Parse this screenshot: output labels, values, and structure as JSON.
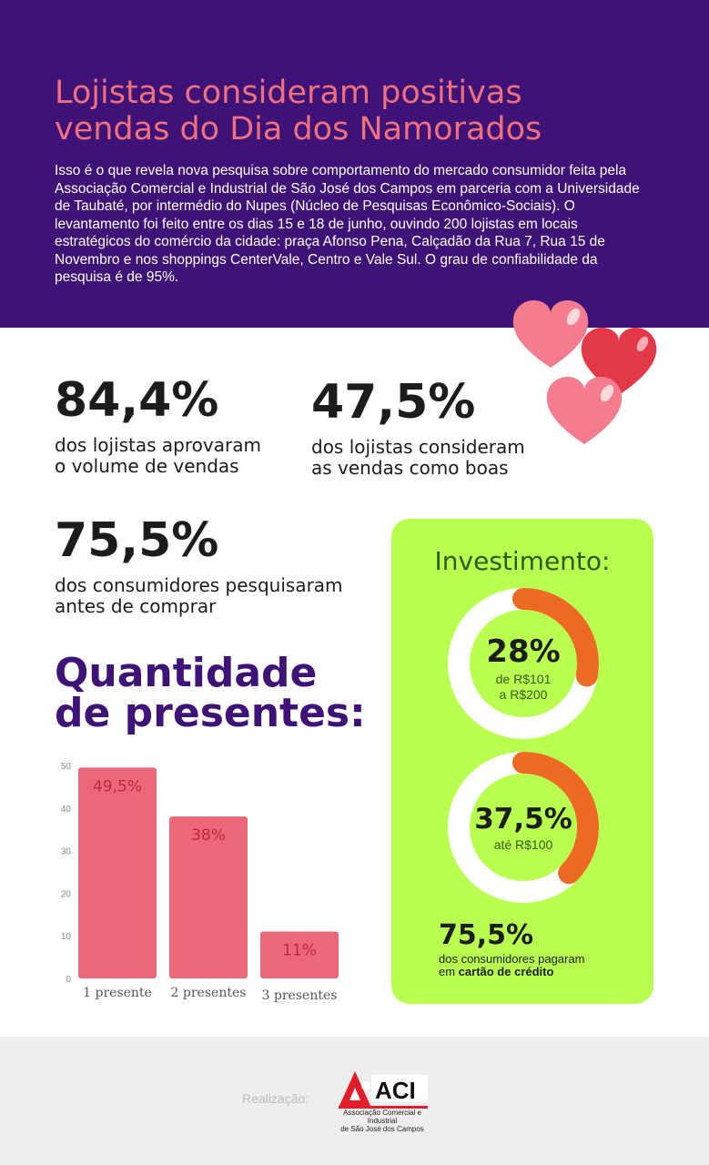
{
  "header": {
    "title": "Lojistas consideram positivas vendas do Dia dos Namorados",
    "text": "Isso é o que revela nova pesquisa sobre comportamento do mercado consumidor feita pela Associação Comercial e Industrial de São José dos Campos em parceria com a Universidade de Taubaté, por intermédio do Nupes (Núcleo de Pesquisas Econômico-Sociais). O levantamento foi feito entre os dias 15 e 18 de junho, ouvindo 200 lojistas em locais estratégicos do comércio da cidade: praça Afonso Pena, Calçadão da Rua 7, Rua 15 de Novembro e nos shoppings CenterVale, Centro e Vale Sul. O grau de confiabilidade da pesquisa é de 95%."
  },
  "stats": [
    {
      "number": "84,4%",
      "line1": "dos lojistas aprovaram",
      "line2": "o volume de vendas"
    },
    {
      "number": "47,5%",
      "line1": "dos lojistas consideram",
      "line2": "as vendas como boas"
    },
    {
      "number": "75,5%",
      "line1": "dos consumidores pesquisaram",
      "line2": "antes de comprar"
    }
  ],
  "gifts": {
    "title_line1": "Quantidade",
    "title_line2": "de presentes:"
  },
  "chart_data": {
    "type": "bar",
    "categories": [
      "1 presente",
      "2 presentes",
      "3 presentes"
    ],
    "values": [
      49.5,
      38,
      11
    ],
    "value_labels": [
      "49,5%",
      "38%",
      "11%"
    ],
    "yticks": [
      0,
      10,
      20,
      30,
      40,
      50
    ],
    "ylim": [
      0,
      50
    ],
    "grid": false,
    "bar_color": "#ec6878",
    "label_color": "#b82a3c"
  },
  "investment": {
    "title": "Investimento:",
    "donuts": [
      {
        "value": "28%",
        "fraction": 0.28,
        "label_line1": "de R$101",
        "label_line2": "a R$200"
      },
      {
        "value": "37,5%",
        "fraction": 0.375,
        "label_line1": "até R$100",
        "label_line2": ""
      }
    ],
    "stat_number": "75,5%",
    "stat_line1": "dos consumidores pagaram",
    "stat_line2_prefix": "em ",
    "stat_line2_bold": "cartão de crédito"
  },
  "footer": {
    "label": "Realização:",
    "logo_text": "ACI",
    "logo_caption_line1": "Associação Comercial e Industrial",
    "logo_caption_line2": "de São José dos Campos"
  },
  "colors": {
    "header_bg": "#3e1277",
    "title_pink": "#f0707e",
    "invest_bg": "#b8ff4f",
    "donut_arc": "#ee6a22",
    "donut_track": "#ffffff",
    "heart_pink": "#f47c8e",
    "heart_red": "#e33848"
  }
}
